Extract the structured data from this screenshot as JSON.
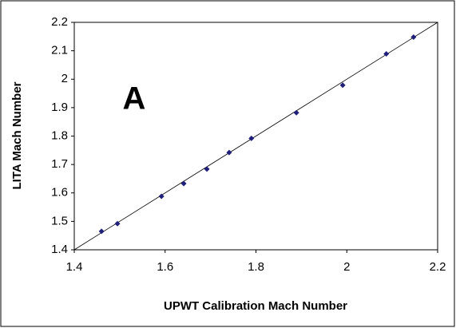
{
  "chart_data": {
    "type": "scatter",
    "annotation": "A",
    "xlabel": "UPWT Calibration Mach Number",
    "ylabel": "LITA Mach Number",
    "x": [
      1.46,
      1.495,
      1.592,
      1.641,
      1.692,
      1.741,
      1.79,
      1.889,
      1.991,
      2.087,
      2.147
    ],
    "values": [
      1.465,
      1.492,
      1.588,
      1.633,
      1.684,
      1.742,
      1.792,
      1.882,
      1.979,
      2.089,
      2.148
    ],
    "color": "#1f1f7a",
    "xlim": [
      1.4,
      2.2
    ],
    "xticks": [
      1.4,
      1.6,
      1.8,
      2,
      2.2
    ],
    "ylim": [
      1.4,
      2.2
    ],
    "yticks": [
      1.4,
      1.5,
      1.6,
      1.7,
      1.8,
      1.9,
      2,
      2.1,
      2.2
    ],
    "grid": false
  }
}
